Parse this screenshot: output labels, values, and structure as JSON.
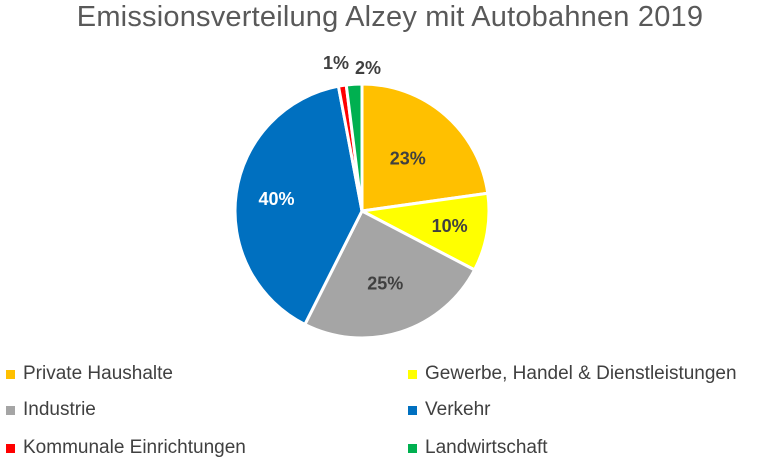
{
  "chart_data": {
    "type": "pie",
    "title": "Emissionsverteilung Alzey mit Autobahnen 2019",
    "categories": [
      "Private Haushalte",
      "Gewerbe, Handel & Dienstleistungen",
      "Industrie",
      "Verkehr",
      "Kommunale Einrichtungen",
      "Landwirtschaft"
    ],
    "values": [
      23,
      10,
      25,
      40,
      1,
      2
    ],
    "labels": [
      "23%",
      "10%",
      "25%",
      "40%",
      "1%",
      "2%"
    ],
    "colors": [
      "#FFC000",
      "#FFFF00",
      "#A5A5A5",
      "#0070C0",
      "#FF0000",
      "#00B050"
    ],
    "legend_position": "bottom"
  }
}
